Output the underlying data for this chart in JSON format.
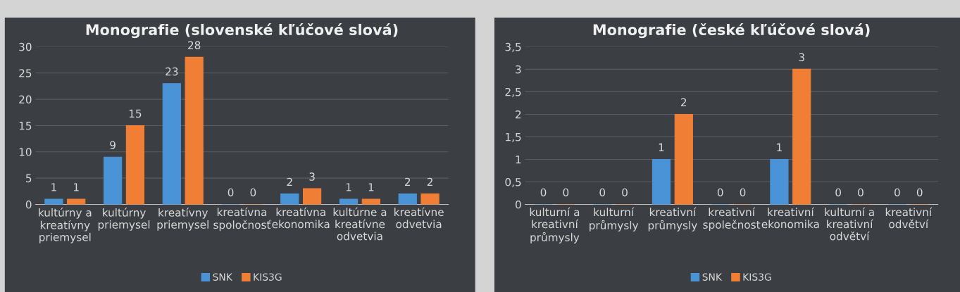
{
  "chart_data": [
    {
      "type": "bar",
      "title": "Monografie (slovenské kľúčové slová)",
      "categories": [
        "kultúrny a\nkreatívny\npriemysel",
        "kultúrny\npriemysel",
        "kreatívny\npriemysel",
        "kreatívna\nspoločnosť",
        "kreatívna\nekonomika",
        "kultúrne a\nkreatívne\nodvetvia",
        "kreatívne\nodvetvia"
      ],
      "series": [
        {
          "name": "SNK",
          "color": "#4a93d6",
          "values": [
            1,
            9,
            23,
            0,
            2,
            1,
            2
          ]
        },
        {
          "name": "KIS3G",
          "color": "#f07f35",
          "values": [
            1,
            15,
            28,
            0,
            3,
            1,
            2
          ]
        }
      ],
      "ylim": [
        0,
        30
      ],
      "yticks": [
        0,
        5,
        10,
        15,
        20,
        25,
        30
      ],
      "grid": "y",
      "legend": "bottom",
      "data_labels": true
    },
    {
      "type": "bar",
      "title": "Monografie (české kľúčové slová)",
      "categories": [
        "kulturní a\nkreativní\nprůmysly",
        "kulturní\nprůmysly",
        "kreativní\nprůmysly",
        "kreativní\nspolečnost",
        "kreativní\nekonomika",
        "kulturní a\nkreativní\nodvětví",
        "kreativní\nodvětví"
      ],
      "series": [
        {
          "name": "SNK",
          "color": "#4a93d6",
          "values": [
            0,
            0,
            1,
            0,
            1,
            0,
            0
          ]
        },
        {
          "name": "KIS3G",
          "color": "#f07f35",
          "values": [
            0,
            0,
            2,
            0,
            3,
            0,
            0
          ]
        }
      ],
      "ylim": [
        0,
        3.5
      ],
      "yticks": [
        0,
        {
          "value": 0.5,
          "label": "0,5"
        },
        1,
        {
          "value": 1.5,
          "label": "1,5"
        },
        2,
        {
          "value": 2.5,
          "label": "2,5"
        },
        3,
        {
          "value": 3.5,
          "label": "3,5"
        }
      ],
      "grid": "y",
      "legend": "bottom",
      "data_labels": true
    }
  ]
}
